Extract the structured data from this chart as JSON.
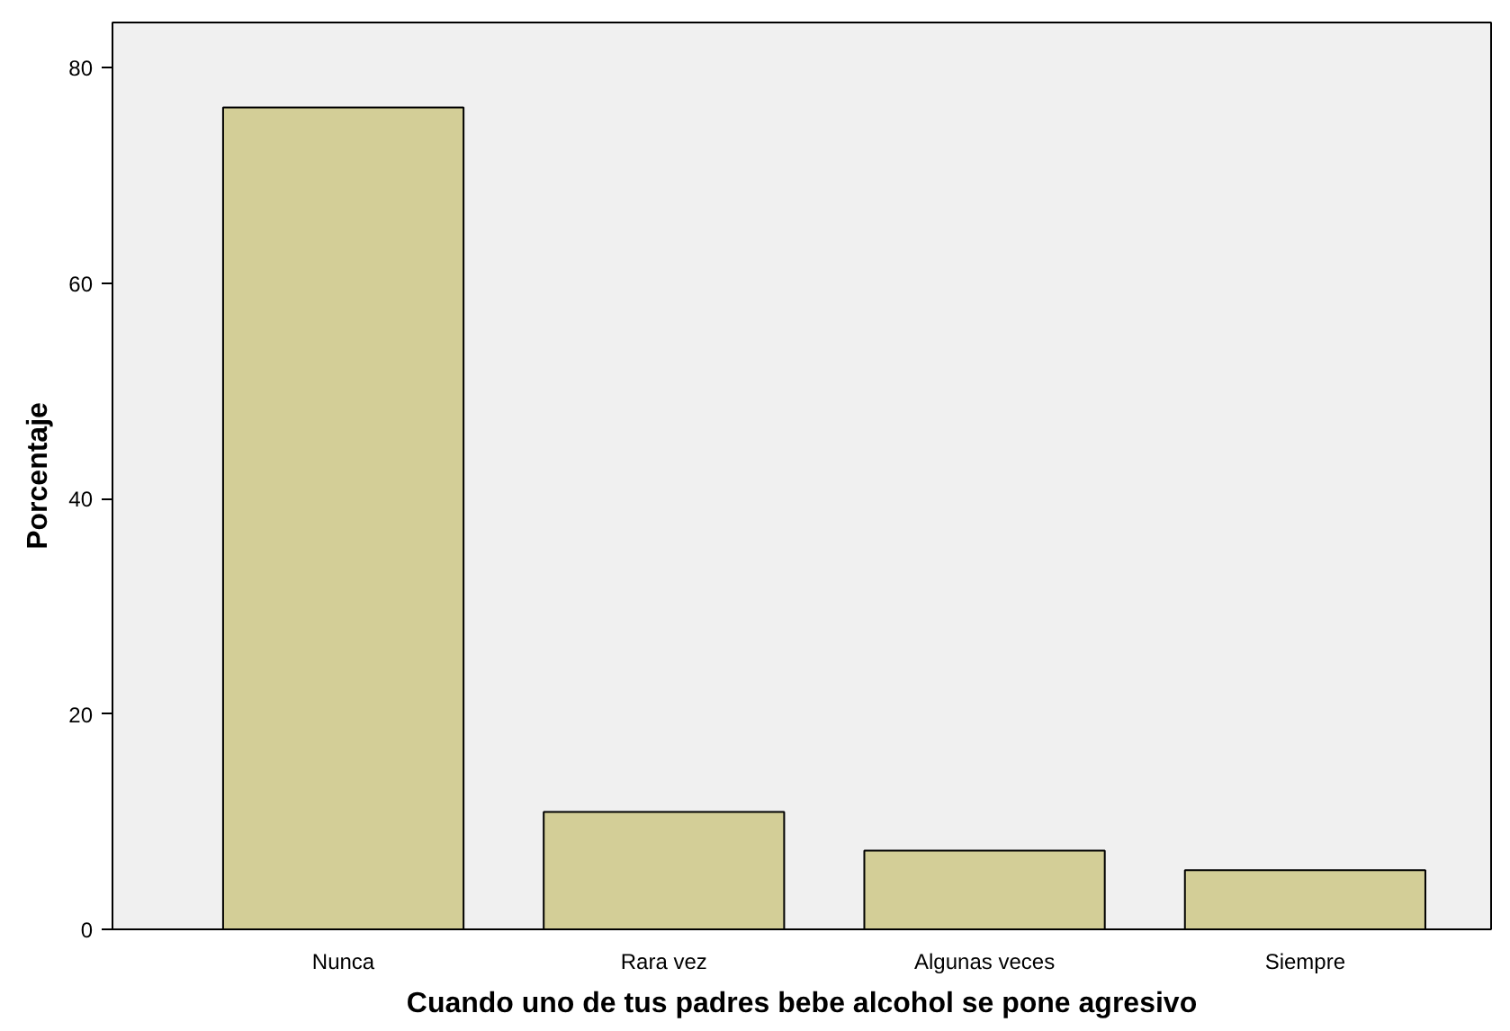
{
  "chart_data": {
    "type": "bar",
    "xlabel": "Cuando uno de tus padres bebe alcohol se pone agresivo",
    "ylabel": "Porcentaje",
    "categories": [
      "Nunca",
      "Rara vez",
      "Algunas veces",
      "Siempre"
    ],
    "values": [
      76.3,
      10.9,
      7.3,
      5.5
    ],
    "color": "#d3ce97",
    "ylim": [
      0,
      84.2
    ],
    "yticks": [
      0,
      20,
      40,
      60,
      80
    ],
    "grid": false
  }
}
